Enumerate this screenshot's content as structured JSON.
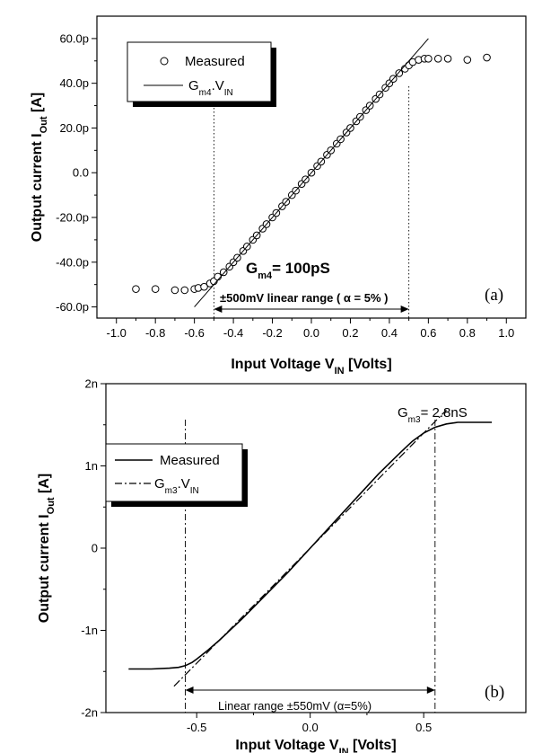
{
  "chart_data": [
    {
      "type": "scatter",
      "panel_label": "(a)",
      "xlabel": {
        "base": "Input Voltage V",
        "sub": "IN",
        "suffix": " [Volts]"
      },
      "ylabel": {
        "base": "Output current I",
        "sub": "Out",
        "suffix": " [A]"
      },
      "xlim": [
        -1.1,
        1.1
      ],
      "ylim": [
        -65,
        70
      ],
      "x_ticks": [
        {
          "v": -1.0,
          "label": "-1.0"
        },
        {
          "v": -0.8,
          "label": "-0.8"
        },
        {
          "v": -0.6,
          "label": "-0.6"
        },
        {
          "v": -0.4,
          "label": "-0.4"
        },
        {
          "v": -0.2,
          "label": "-0.2"
        },
        {
          "v": 0.0,
          "label": "0.0"
        },
        {
          "v": 0.2,
          "label": "0.2"
        },
        {
          "v": 0.4,
          "label": "0.4"
        },
        {
          "v": 0.6,
          "label": "0.6"
        },
        {
          "v": 0.8,
          "label": "0.8"
        },
        {
          "v": 1.0,
          "label": "1.0"
        }
      ],
      "y_ticks": [
        {
          "v": 60,
          "label": "60.0p"
        },
        {
          "v": 40,
          "label": "40.0p"
        },
        {
          "v": 20,
          "label": "20.0p"
        },
        {
          "v": 0,
          "label": "0.0"
        },
        {
          "v": -20,
          "label": "-20.0p"
        },
        {
          "v": -40,
          "label": "-40.0p"
        },
        {
          "v": -60,
          "label": "-60.0p"
        }
      ],
      "legend": {
        "position": "top-left",
        "entries": [
          {
            "style": "circle",
            "text": "Measured"
          },
          {
            "style": "solid",
            "base": "G",
            "sub": "m4",
            "suffix": ".V",
            "sub2": "IN"
          }
        ]
      },
      "series": [
        {
          "name": "Measured",
          "style": "circle",
          "points": [
            [
              -0.9,
              -52
            ],
            [
              -0.8,
              -52
            ],
            [
              -0.7,
              -52.5
            ],
            [
              -0.65,
              -52.5
            ],
            [
              -0.6,
              -52
            ],
            [
              -0.58,
              -51.5
            ],
            [
              -0.55,
              -51
            ],
            [
              -0.52,
              -49.5
            ],
            [
              -0.5,
              -48.5
            ],
            [
              -0.48,
              -46.5
            ],
            [
              -0.45,
              -44.5
            ],
            [
              -0.42,
              -42
            ],
            [
              -0.4,
              -40
            ],
            [
              -0.38,
              -38
            ],
            [
              -0.35,
              -35
            ],
            [
              -0.33,
              -33
            ],
            [
              -0.3,
              -30
            ],
            [
              -0.28,
              -28
            ],
            [
              -0.25,
              -25
            ],
            [
              -0.23,
              -23
            ],
            [
              -0.2,
              -20
            ],
            [
              -0.18,
              -18
            ],
            [
              -0.15,
              -15
            ],
            [
              -0.13,
              -13
            ],
            [
              -0.1,
              -10
            ],
            [
              -0.08,
              -8
            ],
            [
              -0.05,
              -5
            ],
            [
              -0.03,
              -3
            ],
            [
              0.0,
              0
            ],
            [
              0.03,
              3
            ],
            [
              0.05,
              5
            ],
            [
              0.08,
              8
            ],
            [
              0.1,
              10
            ],
            [
              0.13,
              13
            ],
            [
              0.15,
              15
            ],
            [
              0.18,
              18
            ],
            [
              0.2,
              20
            ],
            [
              0.23,
              23
            ],
            [
              0.25,
              25
            ],
            [
              0.28,
              28
            ],
            [
              0.3,
              30
            ],
            [
              0.33,
              33
            ],
            [
              0.35,
              35
            ],
            [
              0.38,
              38
            ],
            [
              0.4,
              40
            ],
            [
              0.42,
              42
            ],
            [
              0.45,
              44.5
            ],
            [
              0.48,
              46.5
            ],
            [
              0.5,
              48
            ],
            [
              0.52,
              49.5
            ],
            [
              0.55,
              50.5
            ],
            [
              0.58,
              51
            ],
            [
              0.6,
              51
            ],
            [
              0.65,
              51
            ],
            [
              0.7,
              51
            ],
            [
              0.8,
              50.5
            ],
            [
              0.9,
              51.5
            ]
          ]
        },
        {
          "name": "Gm4.VIN",
          "style": "solid",
          "points": [
            [
              -0.6,
              -60
            ],
            [
              0.6,
              60
            ]
          ]
        }
      ],
      "vlines": [
        -0.5,
        0.5
      ],
      "annotations": {
        "gm": {
          "base": "G",
          "sub": "m4",
          "suffix": "= 100pS"
        },
        "range": "±500mV linear range ( α = 5% )"
      }
    },
    {
      "type": "line",
      "panel_label": "(b)",
      "xlabel": {
        "base": "Input Voltage V",
        "sub": "IN",
        "suffix": " [Volts]"
      },
      "ylabel": {
        "base": "Output current I",
        "sub": "Out",
        "suffix": " [A]"
      },
      "xlim": [
        -0.9,
        0.95
      ],
      "ylim": [
        -2,
        2
      ],
      "x_ticks": [
        {
          "v": -0.5,
          "label": "-0.5"
        },
        {
          "v": 0.0,
          "label": "0.0"
        },
        {
          "v": 0.5,
          "label": "0.5"
        }
      ],
      "y_ticks": [
        {
          "v": 2,
          "label": "2n"
        },
        {
          "v": 1,
          "label": "1n"
        },
        {
          "v": 0,
          "label": "0"
        },
        {
          "v": -1,
          "label": "-1n"
        },
        {
          "v": -2,
          "label": "-2n"
        }
      ],
      "legend": {
        "position": "top-left",
        "entries": [
          {
            "style": "solid",
            "text": "Measured"
          },
          {
            "style": "dashdot",
            "base": "G",
            "sub": "m3",
            "suffix": ".V",
            "sub2": "IN"
          }
        ]
      },
      "series": [
        {
          "name": "Measured",
          "style": "solid",
          "points": [
            [
              -0.8,
              -1.47
            ],
            [
              -0.7,
              -1.47
            ],
            [
              -0.62,
              -1.46
            ],
            [
              -0.58,
              -1.45
            ],
            [
              -0.55,
              -1.43
            ],
            [
              -0.52,
              -1.39
            ],
            [
              -0.5,
              -1.35
            ],
            [
              -0.45,
              -1.24
            ],
            [
              -0.4,
              -1.12
            ],
            [
              -0.3,
              -0.86
            ],
            [
              -0.2,
              -0.58
            ],
            [
              -0.1,
              -0.3
            ],
            [
              0.0,
              0.0
            ],
            [
              0.1,
              0.3
            ],
            [
              0.2,
              0.6
            ],
            [
              0.3,
              0.9
            ],
            [
              0.4,
              1.17
            ],
            [
              0.45,
              1.3
            ],
            [
              0.5,
              1.4
            ],
            [
              0.55,
              1.47
            ],
            [
              0.6,
              1.51
            ],
            [
              0.65,
              1.53
            ],
            [
              0.7,
              1.53
            ],
            [
              0.8,
              1.53
            ]
          ]
        },
        {
          "name": "Gm3.VIN",
          "style": "dashdot",
          "points": [
            [
              -0.6,
              -1.68
            ],
            [
              0.6,
              1.68
            ]
          ]
        }
      ],
      "vlines": [
        -0.55,
        0.55
      ],
      "annotations": {
        "gm": {
          "base": "G",
          "sub": "m3",
          "suffix": "= 2.8nS"
        },
        "range": "Linear range ±550mV (α=5%)"
      }
    }
  ]
}
